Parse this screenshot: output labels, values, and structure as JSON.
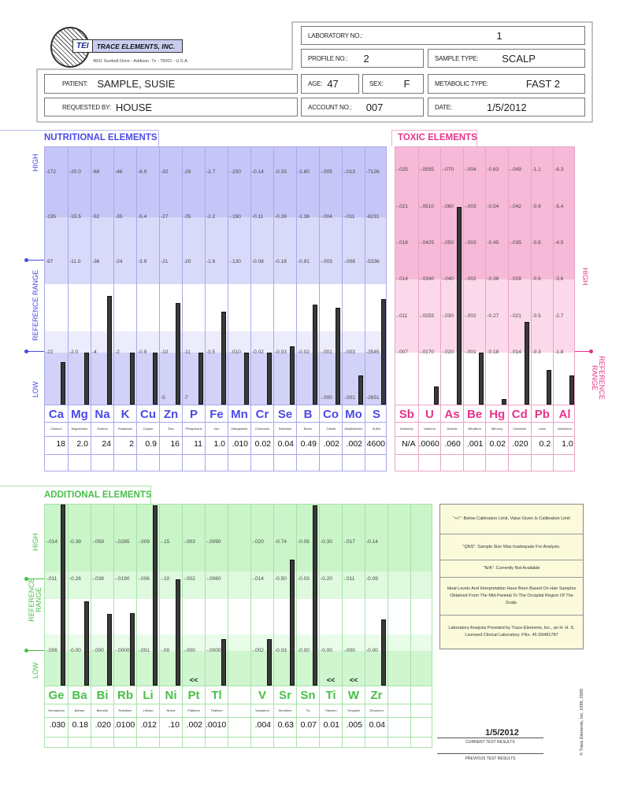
{
  "header": {
    "company": "TRACE ELEMENTS, INC.",
    "logo_text": "TEI",
    "address": "4501 Sunbelt Drive - Addison, Tx - 75001 - U.S.A.",
    "laboratory_no_label": "LABORATORY NO.:",
    "laboratory_no": "1",
    "profile_no_label": "PROFILE NO.:",
    "profile_no": "2",
    "sample_type_label": "SAMPLE TYPE:",
    "sample_type": "SCALP",
    "patient_label": "PATIENT:",
    "patient": "SAMPLE, SUSIE",
    "age_label": "AGE:",
    "age": "47",
    "sex_label": "SEX:",
    "sex": "F",
    "metabolic_type_label": "METABOLIC TYPE:",
    "metabolic_type": "FAST 2",
    "requested_by_label": "REQUESTED BY:",
    "requested_by": "HOUSE",
    "account_no_label": "ACCOUNT NO.:",
    "account_no": "007",
    "date_label": "DATE:",
    "date": "1/5/2012"
  },
  "colors": {
    "nutritional": "#4a4ae6",
    "toxic": "#e8338a",
    "additional": "#49c049"
  },
  "nutritional": {
    "title": "NUTRITIONAL ELEMENTS",
    "side_labels": {
      "high": "HIGH",
      "reference": "REFERENCE RANGE",
      "low": "LOW"
    },
    "elements": [
      {
        "symbol": "Ca",
        "name": "Calcium",
        "value": "18",
        "ticks": [
          "172",
          "135",
          "97",
          "22"
        ]
      },
      {
        "symbol": "Mg",
        "name": "Magnesium",
        "value": "2.0",
        "ticks": [
          "20.0",
          "15.5",
          "11.0",
          "2.0"
        ]
      },
      {
        "symbol": "Na",
        "name": "Sodium",
        "value": "24",
        "ticks": [
          "68",
          "52",
          "36",
          "4"
        ]
      },
      {
        "symbol": "K",
        "name": "Potassium",
        "value": "2",
        "ticks": [
          "46",
          "35",
          "24",
          "2"
        ]
      },
      {
        "symbol": "Cu",
        "name": "Copper",
        "value": "0.9",
        "ticks": [
          "6.9",
          "5.4",
          "3.9",
          "0.9"
        ]
      },
      {
        "symbol": "Zn",
        "name": "Zinc",
        "value": "16",
        "ticks": [
          "32",
          "27",
          "21",
          "10"
        ],
        "bottom_tick": "5"
      },
      {
        "symbol": "P",
        "name": "Phosphorus",
        "value": "11",
        "ticks": [
          "29",
          "25",
          "20",
          "11"
        ],
        "bottom_tick": "7"
      },
      {
        "symbol": "Fe",
        "name": "Iron",
        "value": "1.0",
        "ticks": [
          "2.7",
          "2.2",
          "1.6",
          "0.5"
        ]
      },
      {
        "symbol": "Mn",
        "name": "Manganese",
        "value": ".010",
        "ticks": [
          ".250",
          ".190",
          ".130",
          ".010"
        ]
      },
      {
        "symbol": "Cr",
        "name": "Chromium",
        "value": "0.02",
        "ticks": [
          "0.14",
          "0.11",
          "0.08",
          "0.02"
        ]
      },
      {
        "symbol": "Se",
        "name": "Selenium",
        "value": "0.04",
        "ticks": [
          "0.33",
          "0.26",
          "0.18",
          "0.03"
        ]
      },
      {
        "symbol": "B",
        "name": "Boron",
        "value": "0.49",
        "ticks": [
          "1.80",
          "1.36",
          "0.91",
          "0.02"
        ]
      },
      {
        "symbol": "Co",
        "name": "Cobalt",
        "value": ".002",
        "ticks": [
          ".005",
          ".004",
          ".003",
          ".001"
        ],
        "bottom_tick": ".000"
      },
      {
        "symbol": "Mo",
        "name": "Molybdenum",
        "value": ".002",
        "ticks": [
          ".013",
          ".011",
          ".008",
          ".003"
        ],
        "bottom_tick": ".001"
      },
      {
        "symbol": "S",
        "name": "Sulfur",
        "value": "4600",
        "ticks": [
          "7126",
          "6231",
          "5336",
          "3545"
        ],
        "bottom_tick": "2651"
      }
    ]
  },
  "toxic": {
    "title": "TOXIC ELEMENTS",
    "side_labels": {
      "high": "HIGH",
      "reference": "REFERENCE RANGE"
    },
    "elements": [
      {
        "symbol": "Sb",
        "name": "Antimony",
        "value": "N/A",
        "ticks": [
          ".025",
          ".021",
          ".018",
          ".014",
          ".011",
          ".007"
        ]
      },
      {
        "symbol": "U",
        "name": "Uranium",
        "value": ".0060",
        "ticks": [
          ".0595",
          ".0510",
          ".0425",
          ".0340",
          ".0255",
          ".0170"
        ]
      },
      {
        "symbol": "As",
        "name": "Arsenic",
        "value": ".060",
        "ticks": [
          ".070",
          ".060",
          ".050",
          ".040",
          ".030",
          ".020"
        ]
      },
      {
        "symbol": "Be",
        "name": "Beryllium",
        "value": ".001",
        "ticks": [
          ".004",
          ".003",
          ".003",
          ".002",
          ".002",
          ".001"
        ]
      },
      {
        "symbol": "Hg",
        "name": "Mercury",
        "value": "0.02",
        "ticks": [
          "0.63",
          "0.54",
          "0.45",
          "0.36",
          "0.27",
          "0.18"
        ]
      },
      {
        "symbol": "Cd",
        "name": "Cadmium",
        "value": ".020",
        "ticks": [
          ".049",
          ".042",
          ".035",
          ".028",
          ".021",
          ".014"
        ]
      },
      {
        "symbol": "Pb",
        "name": "Lead",
        "value": "0.2",
        "ticks": [
          "1.1",
          "0.9",
          "0.8",
          "0.6",
          "0.5",
          "0.3"
        ]
      },
      {
        "symbol": "Al",
        "name": "Aluminum",
        "value": "1.0",
        "ticks": [
          "6.3",
          "5.4",
          "4.5",
          "3.6",
          "2.7",
          "1.8"
        ]
      }
    ]
  },
  "additional": {
    "title": "ADDITIONAL ELEMENTS",
    "side_labels": {
      "high": "HIGH",
      "reference": "REFERENCE RANGE",
      "low": "LOW"
    },
    "below_calibration_marker": "<<",
    "elements": [
      {
        "symbol": "Ge",
        "name": "Germanium",
        "value": ".030",
        "ticks": [
          ".014",
          ".011",
          ".006"
        ]
      },
      {
        "symbol": "Ba",
        "name": "Barium",
        "value": "0.18",
        "ticks": [
          "0.39",
          "0.26",
          "0.00"
        ]
      },
      {
        "symbol": "Bi",
        "name": "Bismuth",
        "value": ".020",
        "ticks": [
          ".059",
          ".039",
          ".000"
        ]
      },
      {
        "symbol": "Rb",
        "name": "Rubidium",
        "value": ".0100",
        "ticks": [
          ".0285",
          ".0190",
          ".0000"
        ]
      },
      {
        "symbol": "Li",
        "name": "Lithium",
        "value": ".012",
        "ticks": [
          ".009",
          ".006",
          ".001"
        ]
      },
      {
        "symbol": "Ni",
        "name": "Nickel",
        "value": ".10",
        "ticks": [
          ".15",
          ".10",
          ".00"
        ]
      },
      {
        "symbol": "Pt",
        "name": "Platinum",
        "value": ".002",
        "ticks": [
          ".003",
          ".002",
          ".000"
        ],
        "below_calibration": true
      },
      {
        "symbol": "Tl",
        "name": "Thallium",
        "value": ".0010",
        "ticks": [
          ".0090",
          ".0060",
          ".0000"
        ]
      },
      {
        "symbol": "",
        "name": "",
        "value": "",
        "ticks": []
      },
      {
        "symbol": "V",
        "name": "Vanadium",
        "value": ".004",
        "ticks": [
          ".020",
          ".014",
          ".002"
        ]
      },
      {
        "symbol": "Sr",
        "name": "Strontium",
        "value": "0.63",
        "ticks": [
          "0.74",
          "0.50",
          "0.03"
        ]
      },
      {
        "symbol": "Sn",
        "name": "Tin",
        "value": "0.07",
        "ticks": [
          "0.05",
          "0.03",
          "0.00"
        ]
      },
      {
        "symbol": "Ti",
        "name": "Titanium",
        "value": "0.01",
        "ticks": [
          "0.30",
          "0.20",
          "0.00"
        ],
        "below_calibration": true
      },
      {
        "symbol": "W",
        "name": "Tungsten",
        "value": ".005",
        "ticks": [
          ".017",
          ".011",
          ".000"
        ],
        "below_calibration": true
      },
      {
        "symbol": "Zr",
        "name": "Zirconium",
        "value": "0.04",
        "ticks": [
          "0.14",
          "0.09",
          "0.00"
        ]
      },
      {
        "symbol": "",
        "name": "",
        "value": "",
        "ticks": []
      },
      {
        "symbol": "",
        "name": "",
        "value": "",
        "ticks": []
      }
    ]
  },
  "notes": [
    "\"<<\": Below Calibration Limit, Value Given Is Calibration Limit",
    "\"QNS\": Sample Size Was Inadequate For Analysis.",
    "\"N/A\": Currently Not Available",
    "Ideal Levels And Interpretation Have Been Based On Hair Samples Obtained From The Mid-Parietal To The Occipital Region Of The Scalp.",
    "Laboratory Analysis Provided by Trace Elements, Inc., an H. H. S. Licensed Clinical Laboratory.   FNo. 45 D0481787"
  ],
  "footer": {
    "current_date": "1/5/2012",
    "current_label": "CURRENT TEST RESULTS",
    "previous_label": "PREVIOUS TEST RESULTS",
    "copyright": "© Trace Elements, Inc. 1998, 2000"
  }
}
